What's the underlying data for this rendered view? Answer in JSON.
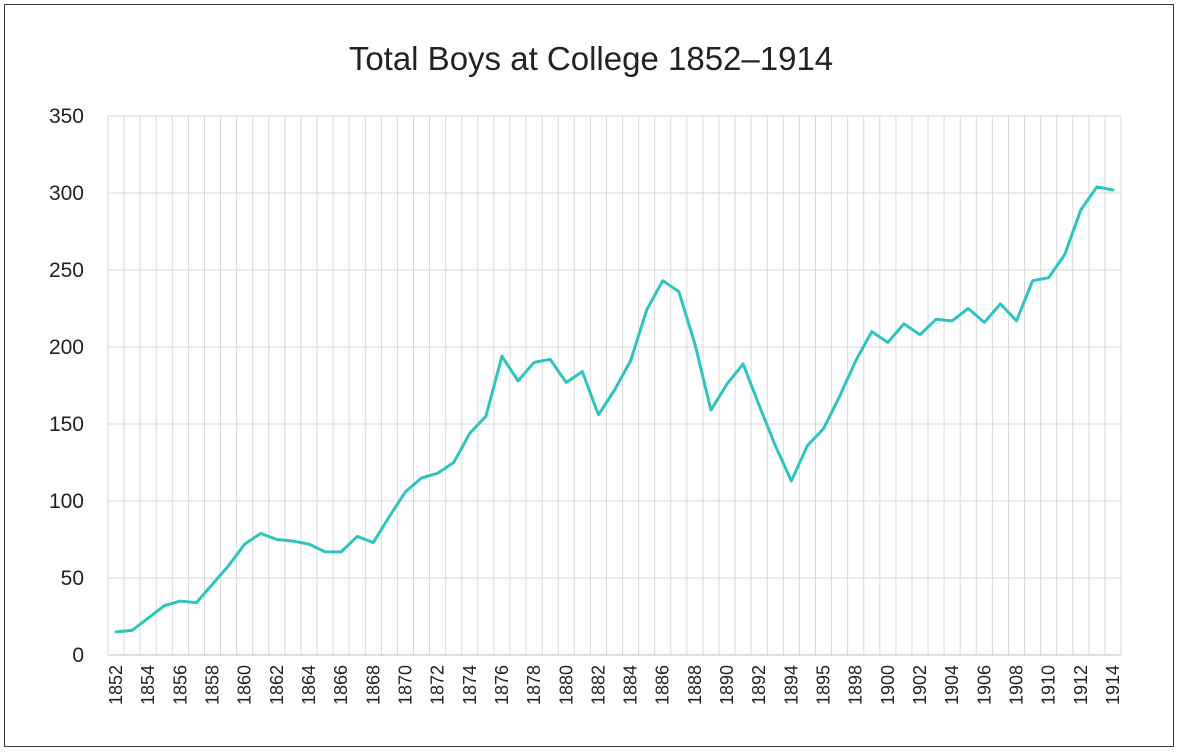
{
  "chart_data": {
    "type": "line",
    "title": "Total Boys at College 1852–1914",
    "xlabel": "",
    "ylabel": "",
    "ylim": [
      0,
      350
    ],
    "y_ticks": [
      0,
      50,
      100,
      150,
      200,
      250,
      300,
      350
    ],
    "grid": true,
    "legend": "none",
    "line_color": "#2ec4c0",
    "x_tick_labels": [
      "1852",
      "1854",
      "1856",
      "1858",
      "1860",
      "1862",
      "1864",
      "1866",
      "1868",
      "1870",
      "1872",
      "1874",
      "1876",
      "1878",
      "1880",
      "1882",
      "1884",
      "1886",
      "1888",
      "1890",
      "1892",
      "1894",
      "1895",
      "1898",
      "1900",
      "1902",
      "1904",
      "1906",
      "1908",
      "1910",
      "1912",
      "1914"
    ],
    "series": [
      {
        "values": [
          15,
          16,
          24,
          32,
          35,
          34,
          46,
          58,
          72,
          79,
          75,
          74,
          72,
          67,
          67,
          77,
          73,
          90,
          106,
          115,
          118,
          125,
          144,
          155,
          194,
          178,
          190,
          192,
          177,
          184,
          156,
          172,
          191,
          224,
          243,
          236,
          202,
          159,
          176,
          189,
          162,
          136,
          113,
          136,
          147,
          168,
          191,
          210,
          203,
          215,
          208,
          218,
          217,
          225,
          216,
          228,
          217,
          243,
          245,
          260,
          289,
          304,
          302
        ]
      }
    ]
  }
}
